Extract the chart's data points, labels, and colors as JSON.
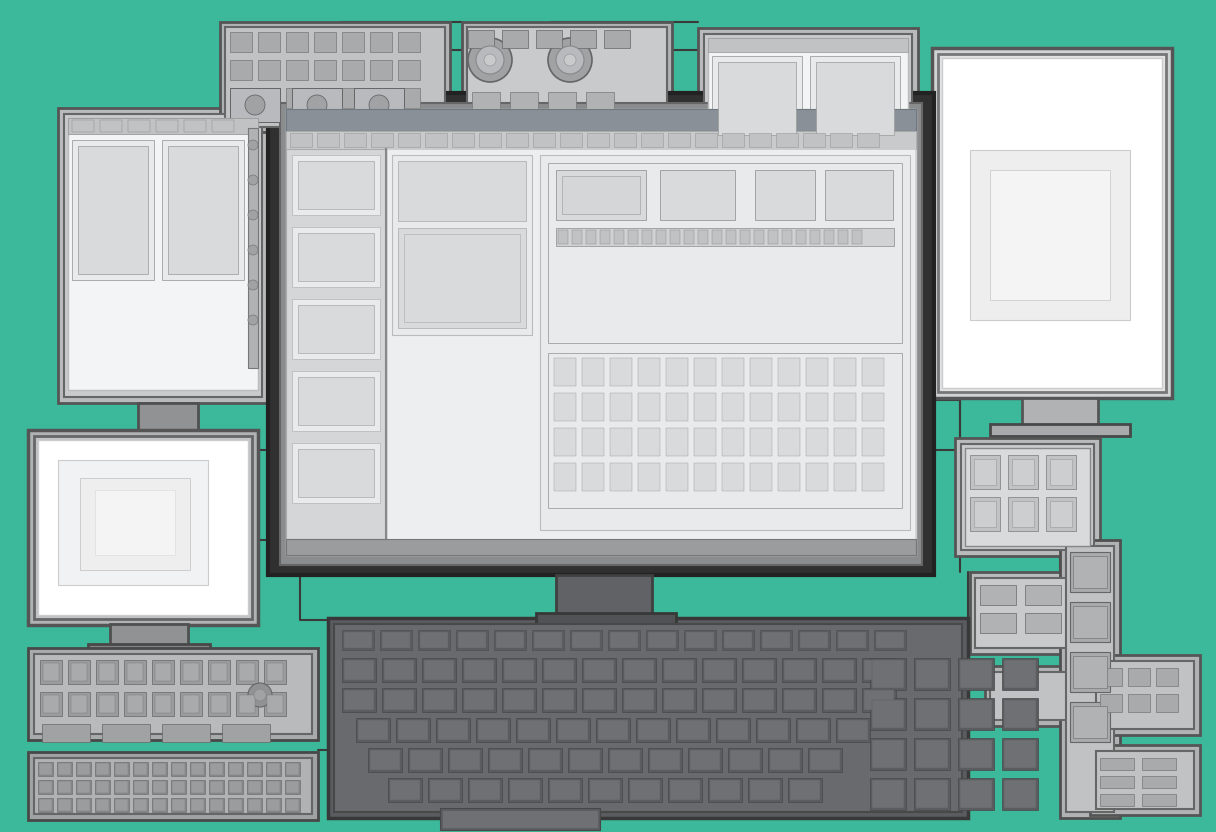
{
  "bg": "#3cb99a",
  "frame_dark": "#303030",
  "frame_med": "#484848",
  "frame_light": "#606060",
  "screen_white": "#f2f4f6",
  "screen_light": "#e8eaec",
  "screen_med": "#d8dadc",
  "screen_dark": "#c0c2c4",
  "pcb_line": "#aaaaaa",
  "key_dark": "#5a5c60",
  "key_mid": "#6e7074",
  "key_light": "#82868a",
  "cable_col": "#3a3a3a",
  "stand_col": "#555860",
  "panel_bg": "#b8babc",
  "panel_inner": "#ccced0",
  "white": "#ffffff",
  "near_white": "#f8f8f8"
}
